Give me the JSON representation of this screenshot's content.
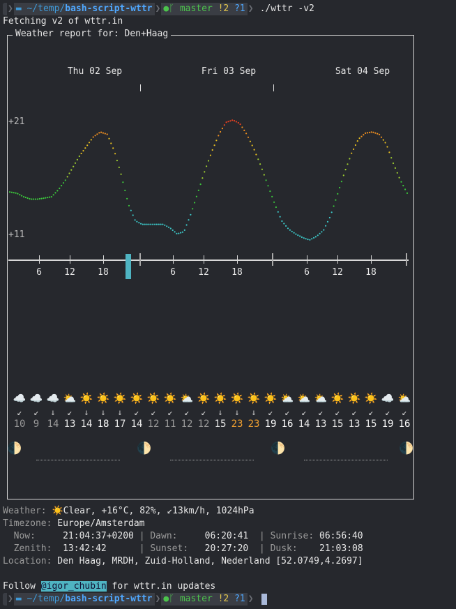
{
  "prompt": {
    "os_icon": "apple-icon",
    "folder_icon": "folder-icon",
    "path_prefix": "~/temp/",
    "path_dir": "bash-script-wttr",
    "git_icon": "github-icon",
    "branch_icon": "branch-icon",
    "branch": "master",
    "staged": "!2",
    "untracked": "?1",
    "command": "./wttr -v2"
  },
  "fetching": "Fetching v2 of wttr.in",
  "report_title": "Weather report for: Den+Haag",
  "days": [
    "Thu 02 Sep",
    "Fri 03 Sep",
    "Sat 04 Sep"
  ],
  "y_labels": [
    "+21",
    "+11"
  ],
  "hours": [
    "6",
    "12",
    "18",
    "6",
    "12",
    "18",
    "6",
    "12",
    "18"
  ],
  "chart_data": {
    "type": "line",
    "title": "",
    "xlabel": "",
    "ylabel": "",
    "ylim": [
      11,
      21
    ],
    "series": [
      {
        "values": [
          15,
          14.9,
          14.6,
          14.4,
          14.4,
          14.5,
          14.6,
          15.2,
          16.0,
          17.0,
          18.0,
          18.8,
          19.6,
          20.0,
          19.8,
          18.4,
          16.4,
          14.0,
          12.6,
          12.3,
          12.3,
          12.3,
          12.3,
          12.0,
          11.5,
          11.7,
          13.2,
          15.0,
          16.8,
          18.4,
          19.8,
          20.8,
          21.0,
          20.7,
          19.8,
          18.6,
          17.2,
          15.6,
          14.0,
          12.6,
          11.9,
          11.5,
          11.2,
          11.0,
          11.3,
          11.8,
          13.0,
          14.8,
          16.6,
          18.2,
          19.4,
          19.9,
          20.0,
          19.8,
          19.0,
          17.4,
          16.0,
          14.9
        ]
      }
    ]
  },
  "weather_icons": [
    "☁️",
    "☁️",
    "☁️",
    "⛅",
    "☀️",
    "☀️",
    "☀️",
    "☀️",
    "☀️",
    "☀️",
    "⛅",
    "☀️",
    "☀️",
    "☀️",
    "☀️",
    "☀️",
    "⛅",
    "⛅",
    "⛅",
    "☀️",
    "☀️",
    "☀️",
    "☁️",
    "⛅"
  ],
  "wind_arrows": [
    "↙",
    "↙",
    "↓",
    "↙",
    "↓",
    "↓",
    "↓",
    "↙",
    "↙",
    "↙",
    "↙",
    "↙",
    "↓",
    "↓",
    "↓",
    "↙",
    "↙",
    "↙",
    "↙",
    "↙",
    "↙",
    "↙",
    "↙",
    "↙"
  ],
  "temps": [
    "10",
    "9",
    "14",
    "13",
    "14",
    "18",
    "17",
    "14",
    "12",
    "11",
    "12",
    "12",
    "15",
    "23",
    "23",
    "19",
    "16",
    "14",
    "13",
    "15",
    "13",
    "15",
    "19",
    "16"
  ],
  "temp_colors": [
    "#9a9a9a",
    "#9a9a9a",
    "#9a9a9a",
    "#e6e6e6",
    "#e6e6e6",
    "#ffffff",
    "#e6e6e6",
    "#e6e6e6",
    "#9a9a9a",
    "#9a9a9a",
    "#9a9a9a",
    "#9a9a9a",
    "#e6e6e6",
    "#f0a030",
    "#f0a030",
    "#ffffff",
    "#ffffff",
    "#e6e6e6",
    "#e6e6e6",
    "#e6e6e6",
    "#e6e6e6",
    "#e6e6e6",
    "#ffffff",
    "#ffffff"
  ],
  "moons": [
    "🌓",
    "🌓",
    "🌓",
    "🌓"
  ],
  "info": {
    "weather_label": "Weather:",
    "weather_value": "☀️Clear, +16°C, 82%, ↙13km/h, 1024hPa",
    "timezone_label": "Timezone:",
    "timezone_value": "Europe/Amsterdam",
    "now_label": "  Now:",
    "now_value": "21:04:37+0200",
    "dawn_label": "Dawn:",
    "dawn_value": "06:20:41",
    "sunrise_label": "Sunrise:",
    "sunrise_value": "06:56:40",
    "zenith_label": "  Zenith:",
    "zenith_value": "13:42:42",
    "sunset_label": "Sunset:",
    "sunset_value": "20:27:20",
    "dusk_label": "Dusk:",
    "dusk_value": "21:03:08",
    "location_label": "Location:",
    "location_value": "Den Haag, MRDH, Zuid-Holland, Nederland [52.0749,4.2697]"
  },
  "follow": {
    "prefix": "Follow ",
    "handle": "@igor_chubin",
    "suffix": " for wttr.in updates"
  }
}
